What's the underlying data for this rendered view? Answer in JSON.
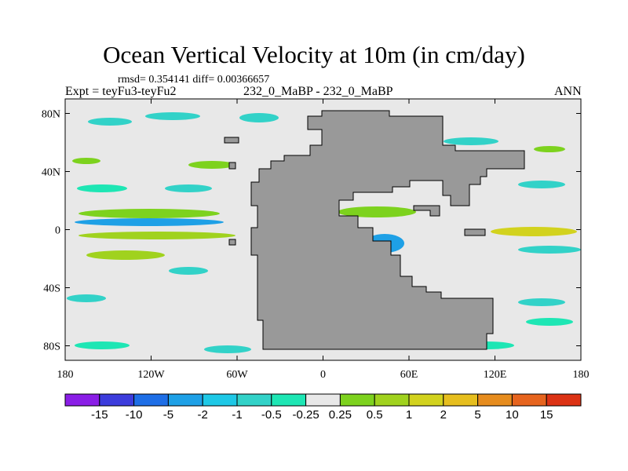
{
  "title": "Ocean Vertical Velocity at 10m (in cm/day)",
  "stats": "rmsd= 0.354141 diff= 0.00366657",
  "left_label": "Expt = teyFu3-teyFu2",
  "center_label": "232_0_MaBP - 232_0_MaBP",
  "right_label": "ANN",
  "map": {
    "x_ticks": [
      "180",
      "120W",
      "60W",
      "0",
      "60E",
      "120E",
      "180"
    ],
    "y_ticks": [
      "80N",
      "40N",
      "0",
      "40S",
      "80S"
    ],
    "lon_range": [
      -180,
      180
    ],
    "lat_range": [
      -90,
      90
    ],
    "colors": {
      "land": "#999999",
      "ocean": "#e8e8e8",
      "frame": "#000000"
    }
  },
  "colorbar": {
    "labels": [
      "-15",
      "-10",
      "-5",
      "-2",
      "-1",
      "-0.5",
      "-0.25",
      "0.25",
      "0.5",
      "1",
      "2",
      "5",
      "10",
      "15"
    ],
    "colors": [
      "#8a1ee6",
      "#3c3cdc",
      "#1e6ee6",
      "#1ea0e6",
      "#1ec8e6",
      "#32d2c8",
      "#1ee6b4",
      "#e8e8e8",
      "#7dd21e",
      "#a0d21e",
      "#d2d21e",
      "#e6be1e",
      "#e68c1e",
      "#e6641e",
      "#dc3214"
    ]
  }
}
